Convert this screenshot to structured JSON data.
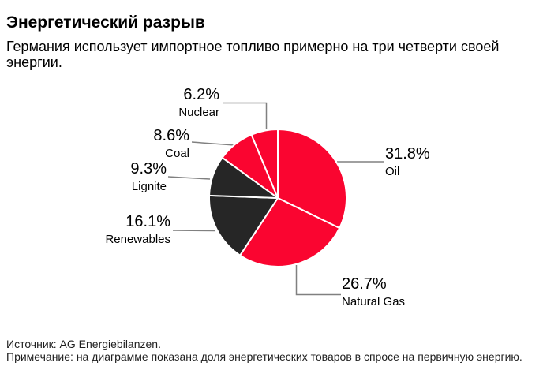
{
  "header": {
    "title": "Энергетический разрыв",
    "subtitle": "Германия использует импортное топливо примерно на три четверти своей энергии."
  },
  "chart_data": {
    "type": "pie",
    "title": "Энергетический разрыв",
    "unit": "%",
    "start_angle": "12 o'clock",
    "direction": "clockwise",
    "slices": [
      {
        "name": "Oil",
        "value": 31.8,
        "value_label": "31.8%",
        "color": "#FA0530"
      },
      {
        "name": "Natural Gas",
        "value": 26.7,
        "value_label": "26.7%",
        "color": "#FA0530"
      },
      {
        "name": "Renewables",
        "value": 16.1,
        "value_label": "16.1%",
        "color": "#262626"
      },
      {
        "name": "Lignite",
        "value": 9.3,
        "value_label": "9.3%",
        "color": "#262626"
      },
      {
        "name": "Coal",
        "value": 8.6,
        "value_label": "8.6%",
        "color": "#FA0530"
      },
      {
        "name": "Nuclear",
        "value": 6.2,
        "value_label": "6.2%",
        "color": "#FA0530"
      }
    ]
  },
  "footer": {
    "source": "Источник: AG Energiebilanzen.",
    "note": "Примечание: на диаграмме показана доля энергетических товаров в спросе на первичную энергию."
  },
  "colors": {
    "accent_red": "#FA0530",
    "dark_slice": "#262626",
    "leader_line": "#808080",
    "background": "#ffffff"
  }
}
